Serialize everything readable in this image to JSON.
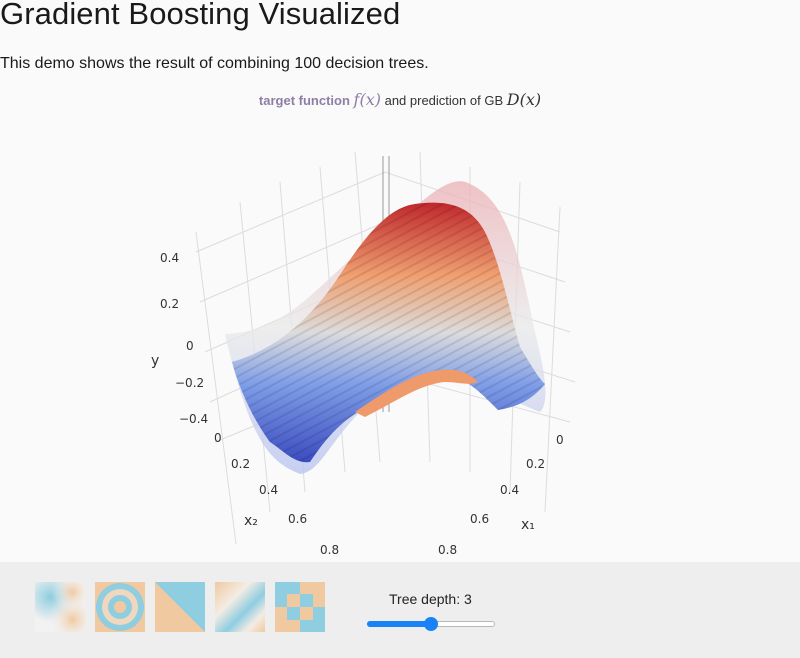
{
  "header": {
    "title": "Gradient Boosting Visualized",
    "description": "This demo shows the result of combining 100 decision trees."
  },
  "plot": {
    "title_target": "target function",
    "title_target_math": "f(x)",
    "title_middle": "and prediction of GB",
    "title_pred_math": "D(x)",
    "axes": {
      "y_title": "y",
      "x1_title": "x₁",
      "x2_title": "x₂",
      "y_ticks": [
        "0.4",
        "0.2",
        "0",
        "−0.2",
        "−0.4"
      ],
      "x1_ticks": [
        "0",
        "0.2",
        "0.4",
        "0.6",
        "0.8"
      ],
      "x2_ticks": [
        "0",
        "0.2",
        "0.4",
        "0.6",
        "0.8"
      ]
    },
    "colorscale": [
      "#3b4cc0",
      "#dddddd",
      "#c0282d"
    ]
  },
  "controls": {
    "thumbnails": [
      {
        "name": "soft-blobs",
        "icon": "gradient-blobs-icon"
      },
      {
        "name": "rings",
        "icon": "concentric-rings-icon"
      },
      {
        "name": "diagonal-split",
        "icon": "diagonal-split-icon"
      },
      {
        "name": "diagonal-gradient",
        "icon": "diagonal-gradient-icon"
      },
      {
        "name": "checkerboard",
        "icon": "checkerboard-icon"
      }
    ],
    "depth_label": "Tree depth: 3",
    "depth_value": 3,
    "depth_min": 1,
    "depth_max": 5
  }
}
